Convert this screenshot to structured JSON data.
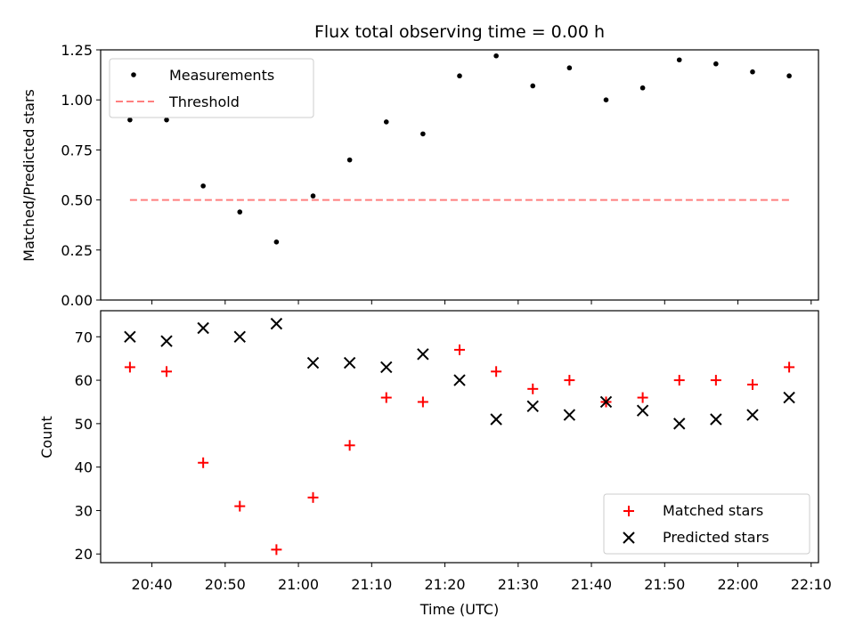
{
  "chart_data": [
    {
      "type": "scatter",
      "title": "Flux total observing time = 0.00 h",
      "xlabel": "",
      "ylabel": "Matched/Predicted stars",
      "ylim": [
        0,
        1.25
      ],
      "y_ticks": [
        "0.00",
        "0.25",
        "0.50",
        "0.75",
        "1.00",
        "1.25"
      ],
      "grid": false,
      "legend": {
        "placement": "upper-left"
      },
      "x": [
        "20:37",
        "20:42",
        "20:47",
        "20:52",
        "20:57",
        "21:02",
        "21:07",
        "21:12",
        "21:17",
        "21:22",
        "21:27",
        "21:32",
        "21:37",
        "21:42",
        "21:47",
        "21:52",
        "21:57",
        "22:02",
        "22:07"
      ],
      "series": [
        {
          "name": "Measurements",
          "marker": "dot",
          "color": "#000000",
          "values": [
            0.9,
            0.9,
            0.57,
            0.44,
            0.29,
            0.52,
            0.7,
            0.89,
            0.83,
            1.12,
            1.22,
            1.07,
            1.16,
            1.0,
            1.06,
            1.2,
            1.18,
            1.14,
            1.12
          ]
        },
        {
          "name": "Threshold",
          "style": "dashed-line",
          "color": "#ff7f7f",
          "x_range": [
            "20:37",
            "22:07"
          ],
          "value": 0.5
        }
      ]
    },
    {
      "type": "scatter",
      "title": "",
      "xlabel": "Time (UTC)",
      "ylabel": "Count",
      "ylim": [
        18,
        76
      ],
      "xlim": [
        "20:33",
        "22:11"
      ],
      "y_ticks": [
        "20",
        "30",
        "40",
        "50",
        "60",
        "70"
      ],
      "x_ticks": [
        "20:40",
        "20:50",
        "21:00",
        "21:10",
        "21:20",
        "21:30",
        "21:40",
        "21:50",
        "22:00",
        "22:10"
      ],
      "grid": false,
      "legend": {
        "placement": "lower-right"
      },
      "x": [
        "20:37",
        "20:42",
        "20:47",
        "20:52",
        "20:57",
        "21:02",
        "21:07",
        "21:12",
        "21:17",
        "21:22",
        "21:27",
        "21:32",
        "21:37",
        "21:42",
        "21:47",
        "21:52",
        "21:57",
        "22:02",
        "22:07"
      ],
      "series": [
        {
          "name": "Matched stars",
          "marker": "plus",
          "color": "#ff0000",
          "values": [
            63,
            62,
            41,
            31,
            21,
            33,
            45,
            56,
            55,
            67,
            62,
            58,
            60,
            55,
            56,
            60,
            60,
            59,
            63
          ]
        },
        {
          "name": "Predicted stars",
          "marker": "x",
          "color": "#000000",
          "values": [
            70,
            69,
            72,
            70,
            73,
            64,
            64,
            63,
            66,
            60,
            51,
            54,
            52,
            55,
            53,
            50,
            51,
            52,
            56
          ]
        }
      ]
    }
  ]
}
